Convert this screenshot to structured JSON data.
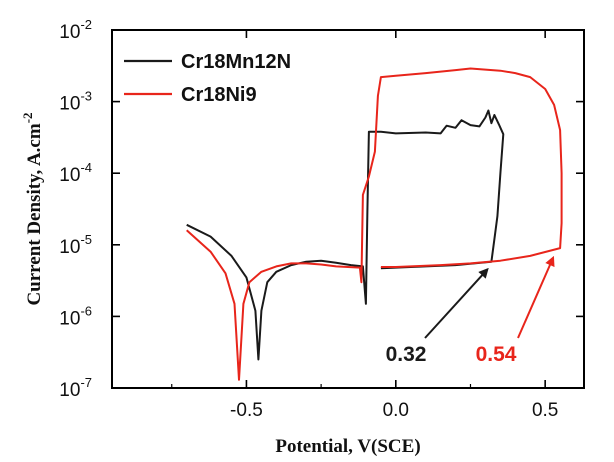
{
  "chart_data": {
    "type": "line",
    "title": "",
    "xlabel": "Potential, V(SCE)",
    "ylabel": "Current Density, A.cm",
    "ylabel_sup": "-2",
    "xlim": [
      -0.95,
      0.63
    ],
    "ylim_log10": [
      -7,
      -2
    ],
    "y_scale": "log",
    "x_ticks": [
      -0.5,
      0.0,
      0.5
    ],
    "x_tick_labels": [
      "-0.5",
      "0.0",
      "0.5"
    ],
    "y_ticks": [
      {
        "base": "10",
        "exp": "-7"
      },
      {
        "base": "10",
        "exp": "-6"
      },
      {
        "base": "10",
        "exp": "-5"
      },
      {
        "base": "10",
        "exp": "-4"
      },
      {
        "base": "10",
        "exp": "-3"
      },
      {
        "base": "10",
        "exp": "-2"
      }
    ],
    "legend_position": "top-left",
    "grid": false,
    "series": [
      {
        "name": "Cr18Mn12N",
        "color": "#1a1a1a",
        "points": [
          [
            -0.7,
            1.9e-05
          ],
          [
            -0.62,
            1.3e-05
          ],
          [
            -0.55,
            7e-06
          ],
          [
            -0.5,
            3.5e-06
          ],
          [
            -0.47,
            1.2e-06
          ],
          [
            -0.46,
            2.5e-07
          ],
          [
            -0.45,
            1.2e-06
          ],
          [
            -0.43,
            3e-06
          ],
          [
            -0.4,
            4.2e-06
          ],
          [
            -0.35,
            5.2e-06
          ],
          [
            -0.3,
            5.8e-06
          ],
          [
            -0.25,
            6e-06
          ],
          [
            -0.2,
            5.6e-06
          ],
          [
            -0.15,
            5.2e-06
          ],
          [
            -0.11,
            5e-06
          ],
          [
            -0.1,
            1.5e-06
          ],
          [
            -0.095,
            3e-05
          ],
          [
            -0.09,
            0.00038
          ],
          [
            -0.05,
            0.00038
          ],
          [
            0.0,
            0.00036
          ],
          [
            0.1,
            0.00037
          ],
          [
            0.15,
            0.00036
          ],
          [
            0.17,
            0.00046
          ],
          [
            0.2,
            0.00043
          ],
          [
            0.22,
            0.00055
          ],
          [
            0.25,
            0.00047
          ],
          [
            0.28,
            0.00045
          ],
          [
            0.3,
            0.0006
          ],
          [
            0.31,
            0.00075
          ],
          [
            0.32,
            0.0005
          ],
          [
            0.33,
            0.00065
          ],
          [
            0.345,
            0.00048
          ],
          [
            0.36,
            0.00035
          ],
          [
            0.35,
            0.0001
          ],
          [
            0.34,
            2.5e-05
          ],
          [
            0.33,
            1.2e-05
          ],
          [
            0.32,
            5.8e-06
          ],
          [
            0.2,
            5.2e-06
          ],
          [
            0.1,
            5e-06
          ],
          [
            0.0,
            4.8e-06
          ],
          [
            -0.05,
            4.7e-06
          ]
        ]
      },
      {
        "name": "Cr18Ni9",
        "color": "#e8251b",
        "points": [
          [
            -0.7,
            1.6e-05
          ],
          [
            -0.62,
            8e-06
          ],
          [
            -0.57,
            4e-06
          ],
          [
            -0.54,
            1.5e-06
          ],
          [
            -0.525,
            1.3e-07
          ],
          [
            -0.51,
            1.5e-06
          ],
          [
            -0.49,
            3e-06
          ],
          [
            -0.45,
            4.2e-06
          ],
          [
            -0.4,
            5e-06
          ],
          [
            -0.35,
            5.5e-06
          ],
          [
            -0.3,
            5.5e-06
          ],
          [
            -0.25,
            5.3e-06
          ],
          [
            -0.2,
            5e-06
          ],
          [
            -0.12,
            4.8e-06
          ],
          [
            -0.115,
            3e-06
          ],
          [
            -0.11,
            5e-05
          ],
          [
            -0.09,
            9e-05
          ],
          [
            -0.07,
            0.0002
          ],
          [
            -0.06,
            0.0012
          ],
          [
            -0.05,
            0.0022
          ],
          [
            0.0,
            0.0023
          ],
          [
            0.1,
            0.0025
          ],
          [
            0.2,
            0.00275
          ],
          [
            0.25,
            0.0029
          ],
          [
            0.3,
            0.0028
          ],
          [
            0.35,
            0.0027
          ],
          [
            0.4,
            0.0025
          ],
          [
            0.45,
            0.0022
          ],
          [
            0.5,
            0.0015
          ],
          [
            0.53,
            0.0009
          ],
          [
            0.55,
            0.0004
          ],
          [
            0.555,
            0.0001
          ],
          [
            0.555,
            2e-05
          ],
          [
            0.55,
            9e-06
          ],
          [
            0.45,
            7e-06
          ],
          [
            0.35,
            6e-06
          ],
          [
            0.25,
            5.5e-06
          ],
          [
            0.15,
            5.2e-06
          ],
          [
            0.05,
            5e-06
          ],
          [
            0.0,
            4.9e-06
          ],
          [
            -0.05,
            4.9e-06
          ]
        ]
      }
    ],
    "annotations": [
      {
        "text": "0.32",
        "color": "#1a1a1a",
        "arrow_to": [
          0.32,
          5.5e-06
        ]
      },
      {
        "text": "0.54",
        "color": "#e8251b",
        "arrow_to": [
          0.54,
          8e-06
        ]
      }
    ]
  }
}
